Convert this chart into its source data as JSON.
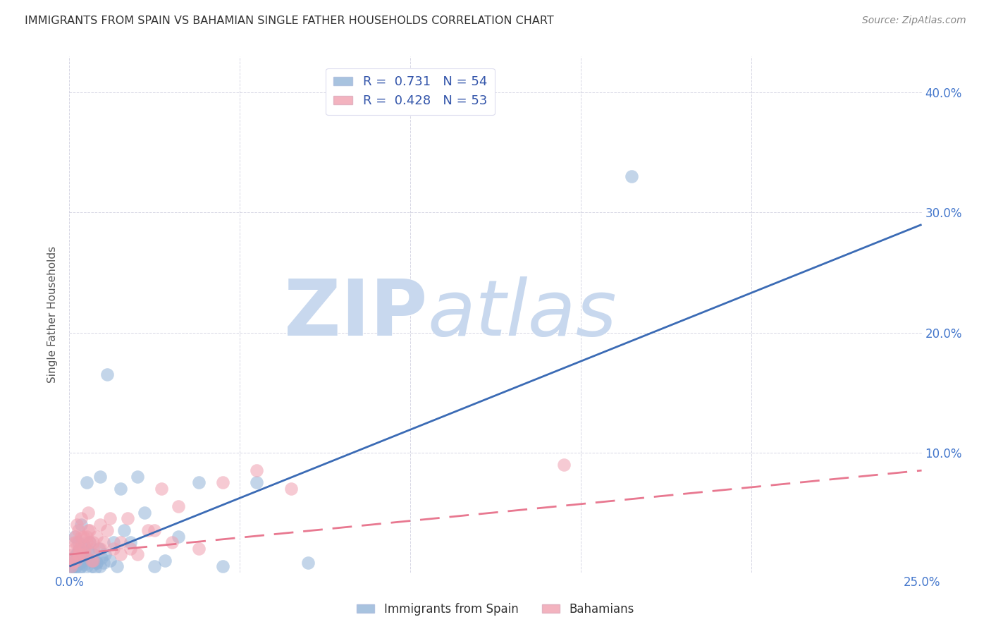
{
  "title": "IMMIGRANTS FROM SPAIN VS BAHAMIAN SINGLE FATHER HOUSEHOLDS CORRELATION CHART",
  "source": "Source: ZipAtlas.com",
  "ylabel": "Single Father Households",
  "xlim": [
    0.0,
    25.0
  ],
  "ylim": [
    0.0,
    43.0
  ],
  "yticks_right": [
    10.0,
    20.0,
    30.0,
    40.0
  ],
  "xtick_positions": [
    0.0,
    5.0,
    10.0,
    15.0,
    20.0,
    25.0
  ],
  "blue_R": 0.731,
  "blue_N": 54,
  "pink_R": 0.428,
  "pink_N": 53,
  "blue_color": "#92B4D8",
  "pink_color": "#F0A0B0",
  "blue_line_color": "#3B6BB5",
  "pink_line_color": "#E87890",
  "watermark_zip": "ZIP",
  "watermark_atlas": "atlas",
  "watermark_color": "#C8D8EE",
  "blue_scatter_x": [
    0.05,
    0.08,
    0.1,
    0.12,
    0.15,
    0.18,
    0.2,
    0.22,
    0.25,
    0.28,
    0.3,
    0.32,
    0.35,
    0.38,
    0.4,
    0.42,
    0.45,
    0.48,
    0.5,
    0.55,
    0.6,
    0.65,
    0.7,
    0.75,
    0.8,
    0.85,
    0.9,
    0.95,
    1.0,
    1.05,
    1.1,
    1.2,
    1.3,
    1.4,
    1.5,
    1.6,
    1.8,
    2.0,
    2.2,
    2.5,
    2.8,
    3.2,
    3.8,
    4.5,
    5.5,
    7.0,
    0.15,
    0.25,
    0.35,
    0.5,
    0.65,
    0.8,
    16.5,
    0.9
  ],
  "blue_scatter_y": [
    0.3,
    0.5,
    0.8,
    1.2,
    0.4,
    1.0,
    1.5,
    0.6,
    1.8,
    0.3,
    2.0,
    0.8,
    0.5,
    1.5,
    1.0,
    2.2,
    0.7,
    1.3,
    0.5,
    1.8,
    2.5,
    1.0,
    1.5,
    0.4,
    0.8,
    2.0,
    0.5,
    1.2,
    0.8,
    1.5,
    16.5,
    1.0,
    2.5,
    0.5,
    7.0,
    3.5,
    2.5,
    8.0,
    5.0,
    0.5,
    1.0,
    3.0,
    7.5,
    0.5,
    7.5,
    0.8,
    3.0,
    2.5,
    4.0,
    7.5,
    0.5,
    0.8,
    33.0,
    8.0
  ],
  "pink_scatter_x": [
    0.05,
    0.08,
    0.1,
    0.12,
    0.15,
    0.18,
    0.2,
    0.22,
    0.25,
    0.28,
    0.3,
    0.35,
    0.4,
    0.45,
    0.5,
    0.55,
    0.6,
    0.65,
    0.7,
    0.8,
    0.9,
    1.0,
    1.1,
    1.3,
    1.5,
    1.7,
    2.0,
    2.3,
    2.7,
    3.2,
    3.8,
    5.5,
    0.2,
    0.3,
    0.4,
    0.5,
    0.6,
    0.7,
    0.9,
    1.2,
    1.5,
    1.8,
    2.5,
    3.0,
    4.5,
    6.5,
    0.15,
    0.25,
    0.35,
    0.45,
    0.55,
    0.7,
    14.5
  ],
  "pink_scatter_y": [
    0.5,
    1.0,
    0.8,
    1.5,
    2.0,
    3.0,
    2.5,
    4.0,
    3.5,
    1.5,
    2.0,
    4.5,
    3.0,
    1.5,
    2.5,
    5.0,
    3.5,
    1.0,
    2.0,
    3.0,
    4.0,
    2.5,
    3.5,
    2.0,
    1.5,
    4.5,
    1.5,
    3.5,
    7.0,
    5.5,
    2.0,
    8.5,
    1.0,
    2.0,
    1.5,
    3.0,
    2.5,
    1.0,
    2.0,
    4.5,
    2.5,
    2.0,
    3.5,
    2.5,
    7.5,
    7.0,
    2.5,
    1.5,
    3.0,
    2.0,
    3.5,
    2.5,
    9.0
  ],
  "blue_line_x": [
    0.0,
    25.0
  ],
  "blue_line_y": [
    0.5,
    29.0
  ],
  "pink_line_x": [
    0.0,
    25.0
  ],
  "pink_line_y": [
    1.5,
    8.5
  ]
}
